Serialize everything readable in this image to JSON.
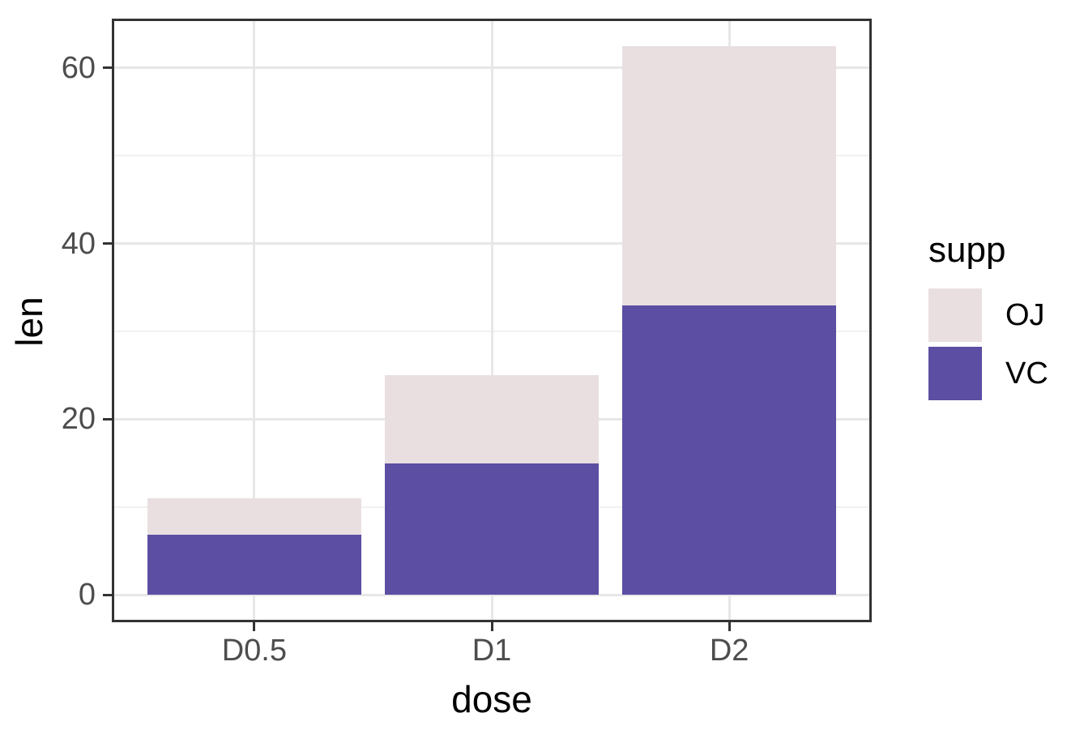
{
  "chart_data": {
    "type": "bar",
    "stacked": true,
    "title": "",
    "xlabel": "dose",
    "ylabel": "len",
    "categories": [
      "D0.5",
      "D1",
      "D2"
    ],
    "series": [
      {
        "name": "OJ",
        "color": "#E9DFE1",
        "values": [
          4.2,
          10,
          29.5
        ]
      },
      {
        "name": "VC",
        "color": "#5B4EA3",
        "values": [
          6.8,
          15,
          33
        ]
      }
    ],
    "stack_order_bottom_to_top": [
      "VC",
      "OJ"
    ],
    "stack_totals": [
      11,
      25,
      62.5
    ],
    "y_ticks": [
      0,
      20,
      40,
      60
    ],
    "y_minor": [
      10,
      30,
      50
    ],
    "ylim": [
      0,
      62.5
    ],
    "grid": true,
    "legend_title": "supp",
    "legend_position": "right"
  },
  "axes": {
    "x_title": "dose",
    "y_title": "len"
  },
  "legend": {
    "title": "supp",
    "items": [
      {
        "label": "OJ",
        "color": "#E9DFE1"
      },
      {
        "label": "VC",
        "color": "#5B4EA3"
      }
    ]
  },
  "colors": {
    "oj_fill": "#E9DFE1",
    "vc_fill": "#5B4EA3",
    "panel_border": "#333333",
    "grid_major": "#E7E7E7",
    "grid_minor": "#F1F1F1",
    "tick_label": "#4D4D4D",
    "axis_title": "#000000",
    "background": "#ffffff"
  }
}
